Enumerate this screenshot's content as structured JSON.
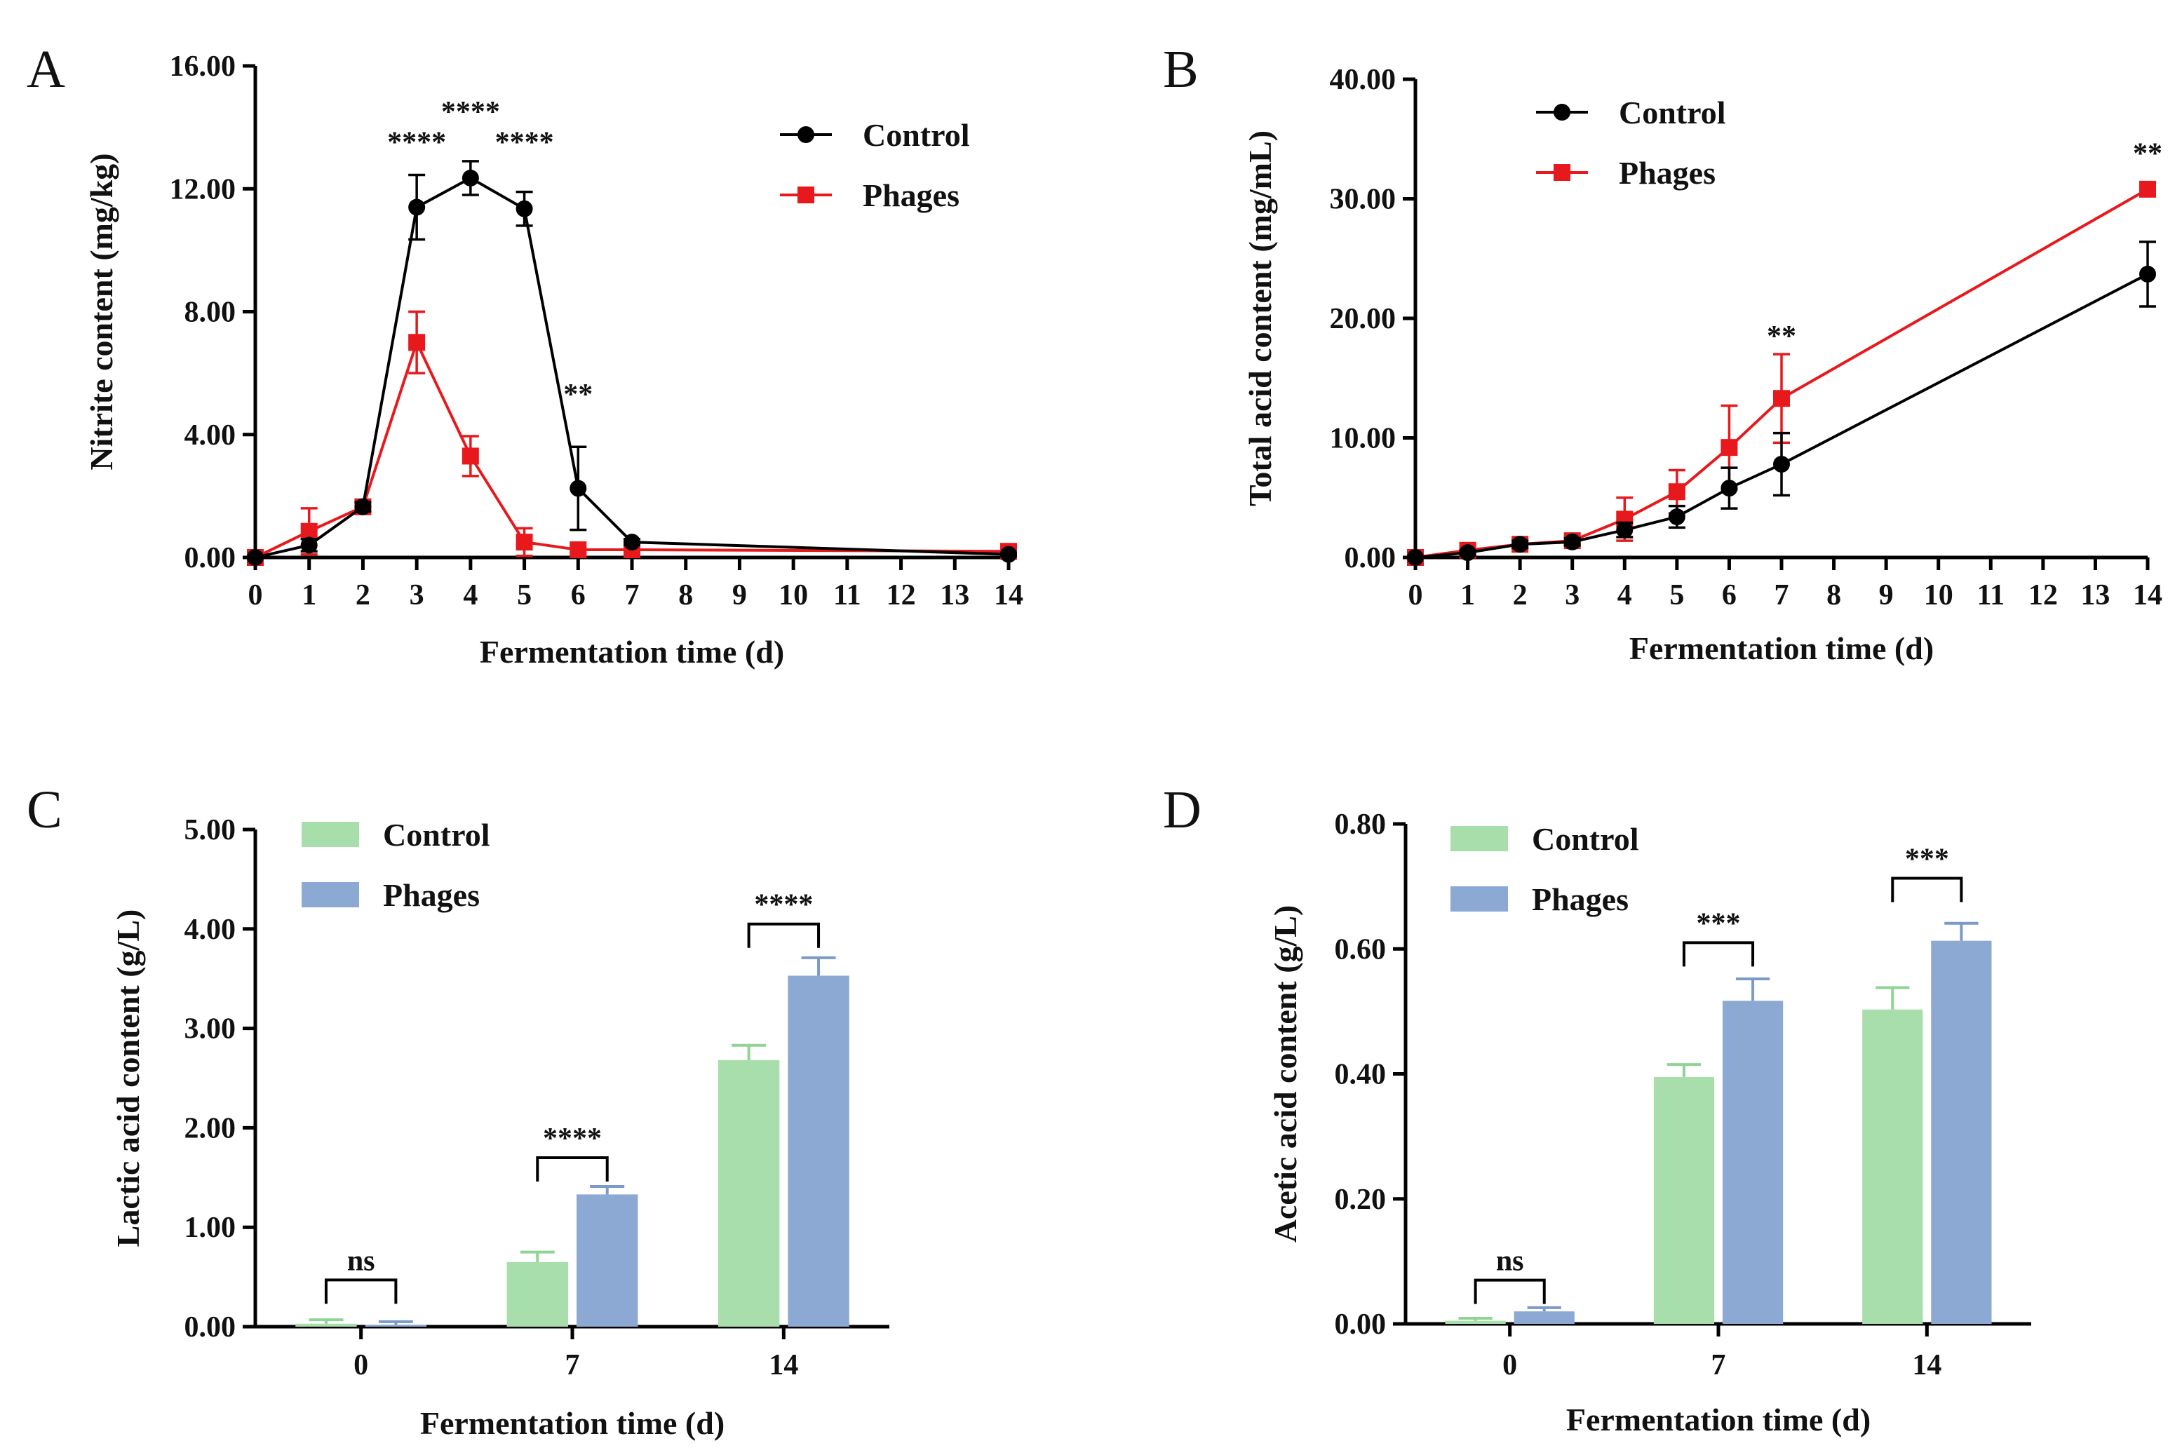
{
  "colors": {
    "control_line": "#000000",
    "phages_line": "#e8191c",
    "control_bar": "#a8deab",
    "phages_bar": "#8ca9d3",
    "control_bar_err": "#8fd494",
    "phages_bar_err": "#7a9bc8",
    "axis": "#000000"
  },
  "chart_data": [
    {
      "panel": "A",
      "type": "line",
      "xlabel": "Fermentation time (d)",
      "ylabel": "Nitrite content (mg/kg)",
      "ylim": [
        0,
        16
      ],
      "yticks": [
        "0.00",
        "4.00",
        "8.00",
        "12.00",
        "16.00"
      ],
      "xlim": [
        0,
        14
      ],
      "xticks": [
        "0",
        "1",
        "2",
        "3",
        "4",
        "5",
        "6",
        "7",
        "8",
        "9",
        "10",
        "11",
        "12",
        "13",
        "14"
      ],
      "legend_position": "top-right",
      "series": [
        {
          "name": "Control",
          "marker": "circle",
          "x": [
            0,
            1,
            2,
            3,
            4,
            5,
            6,
            7,
            14
          ],
          "y": [
            0.0,
            0.4,
            1.65,
            11.4,
            12.35,
            11.35,
            2.25,
            0.5,
            0.1
          ],
          "err": [
            0.0,
            0.2,
            0.15,
            1.05,
            0.55,
            0.55,
            1.35,
            0.1,
            0.05
          ]
        },
        {
          "name": "Phages",
          "marker": "square",
          "x": [
            0,
            1,
            2,
            3,
            4,
            5,
            6,
            7,
            14
          ],
          "y": [
            0.0,
            0.85,
            1.65,
            7.0,
            3.3,
            0.5,
            0.25,
            0.25,
            0.2
          ],
          "err": [
            0.0,
            0.75,
            0.15,
            1.0,
            0.65,
            0.45,
            0.1,
            0.05,
            0.05
          ]
        }
      ],
      "annotations": [
        {
          "text": "****",
          "x": 3,
          "y": 13.2
        },
        {
          "text": "****",
          "x": 4,
          "y": 14.2
        },
        {
          "text": "****",
          "x": 5,
          "y": 13.2
        },
        {
          "text": "**",
          "x": 6,
          "y": 5.0
        }
      ]
    },
    {
      "panel": "B",
      "type": "line",
      "xlabel": "Fermentation time (d)",
      "ylabel": "Total acid content (mg/mL)",
      "ylim": [
        0,
        40
      ],
      "yticks": [
        "0.00",
        "10.00",
        "20.00",
        "30.00",
        "40.00"
      ],
      "xlim": [
        0,
        14
      ],
      "xticks": [
        "0",
        "1",
        "2",
        "3",
        "4",
        "5",
        "6",
        "7",
        "8",
        "9",
        "10",
        "11",
        "12",
        "13",
        "14"
      ],
      "legend_position": "top-left",
      "series": [
        {
          "name": "Control",
          "marker": "circle",
          "x": [
            0,
            1,
            2,
            3,
            4,
            5,
            6,
            7,
            14
          ],
          "y": [
            0.0,
            0.4,
            1.1,
            1.3,
            2.3,
            3.4,
            5.8,
            7.8,
            23.7
          ],
          "err": [
            0.0,
            0.2,
            0.3,
            0.3,
            0.6,
            0.9,
            1.7,
            2.6,
            2.7
          ]
        },
        {
          "name": "Phages",
          "marker": "square",
          "x": [
            0,
            1,
            2,
            3,
            4,
            5,
            6,
            7,
            14
          ],
          "y": [
            0.0,
            0.6,
            1.1,
            1.4,
            3.2,
            5.5,
            9.2,
            13.3,
            30.8
          ],
          "err": [
            0.0,
            0.3,
            0.3,
            0.3,
            1.8,
            1.8,
            3.5,
            3.7,
            0.4
          ]
        }
      ],
      "annotations": [
        {
          "text": "**",
          "x": 7,
          "y": 17.7
        },
        {
          "text": "**",
          "x": 14,
          "y": 33.0
        }
      ]
    },
    {
      "panel": "C",
      "type": "bar",
      "xlabel": "Fermentation time (d)",
      "ylabel": "Lactic acid content (g/L)",
      "ylim": [
        0,
        5
      ],
      "yticks": [
        "0.00",
        "1.00",
        "2.00",
        "3.00",
        "4.00",
        "5.00"
      ],
      "categories": [
        "0",
        "7",
        "14"
      ],
      "legend_position": "top-left",
      "series": [
        {
          "name": "Control",
          "values": [
            0.03,
            0.65,
            2.68
          ],
          "err": [
            0.04,
            0.1,
            0.15
          ]
        },
        {
          "name": "Phages",
          "values": [
            0.02,
            1.33,
            3.53
          ],
          "err": [
            0.03,
            0.08,
            0.18
          ]
        }
      ],
      "comparisons": [
        {
          "category": "0",
          "label": "ns",
          "level": 0.47
        },
        {
          "category": "7",
          "label": "****",
          "level": 1.7
        },
        {
          "category": "14",
          "label": "****",
          "level": 4.05
        }
      ]
    },
    {
      "panel": "D",
      "type": "bar",
      "xlabel": "Fermentation time (d)",
      "ylabel": "Acetic acid content (g/L)",
      "ylim": [
        0,
        0.8
      ],
      "yticks": [
        "0.00",
        "0.20",
        "0.40",
        "0.60",
        "0.80"
      ],
      "categories": [
        "0",
        "7",
        "14"
      ],
      "legend_position": "top-left",
      "series": [
        {
          "name": "Control",
          "values": [
            0.005,
            0.395,
            0.503
          ],
          "err": [
            0.004,
            0.02,
            0.035
          ]
        },
        {
          "name": "Phages",
          "values": [
            0.02,
            0.517,
            0.613
          ],
          "err": [
            0.006,
            0.035,
            0.028
          ]
        }
      ],
      "comparisons": [
        {
          "category": "0",
          "label": "ns",
          "level": 0.07
        },
        {
          "category": "7",
          "label": "***",
          "level": 0.61
        },
        {
          "category": "14",
          "label": "***",
          "level": 0.713
        }
      ]
    }
  ]
}
